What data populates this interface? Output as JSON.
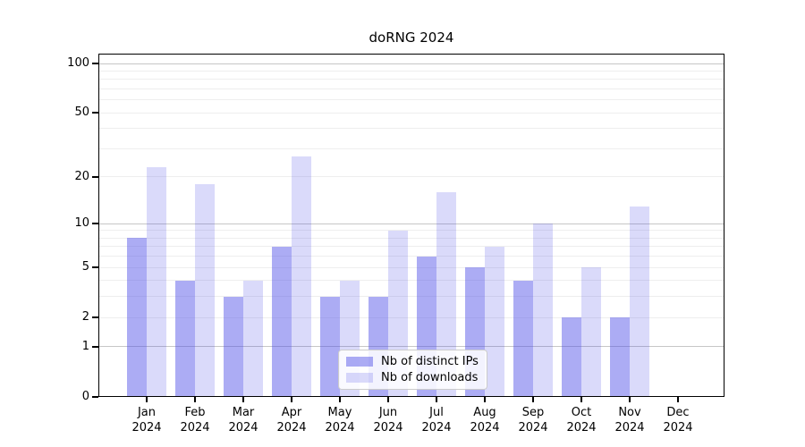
{
  "chart_data": {
    "type": "bar",
    "title": "doRNG 2024",
    "categories": [
      "Jan",
      "Feb",
      "Mar",
      "Apr",
      "May",
      "Jun",
      "Jul",
      "Aug",
      "Sep",
      "Oct",
      "Nov",
      "Dec"
    ],
    "year_label": "2024",
    "series": [
      {
        "name": "Nb of distinct IPs",
        "color": "rgba(70,70,230,0.45)",
        "solid_hex": "#acacf4",
        "values": [
          8,
          4,
          3,
          7,
          3,
          3,
          6,
          5,
          4,
          2,
          2,
          0
        ]
      },
      {
        "name": "Nb of downloads",
        "color": "rgba(70,70,230,0.20)",
        "solid_hex": "#dadafa",
        "values": [
          23,
          18,
          4,
          27,
          4,
          9,
          16,
          7,
          10,
          5,
          13,
          0
        ]
      }
    ],
    "yscale": "log1p",
    "ylim": [
      0,
      115
    ],
    "yticks": [
      0,
      1,
      2,
      5,
      10,
      20,
      50,
      100
    ],
    "grid": {
      "major": [
        1,
        10,
        100
      ],
      "minor": [
        2,
        3,
        4,
        5,
        6,
        7,
        8,
        9,
        20,
        30,
        40,
        50,
        60,
        70,
        80,
        90
      ],
      "major_color": "#c6c6c6",
      "minor_color": "#eeeeee"
    },
    "legend": {
      "position": "lower-center",
      "background": "#ffffff",
      "border_color": "#cccccc"
    }
  }
}
